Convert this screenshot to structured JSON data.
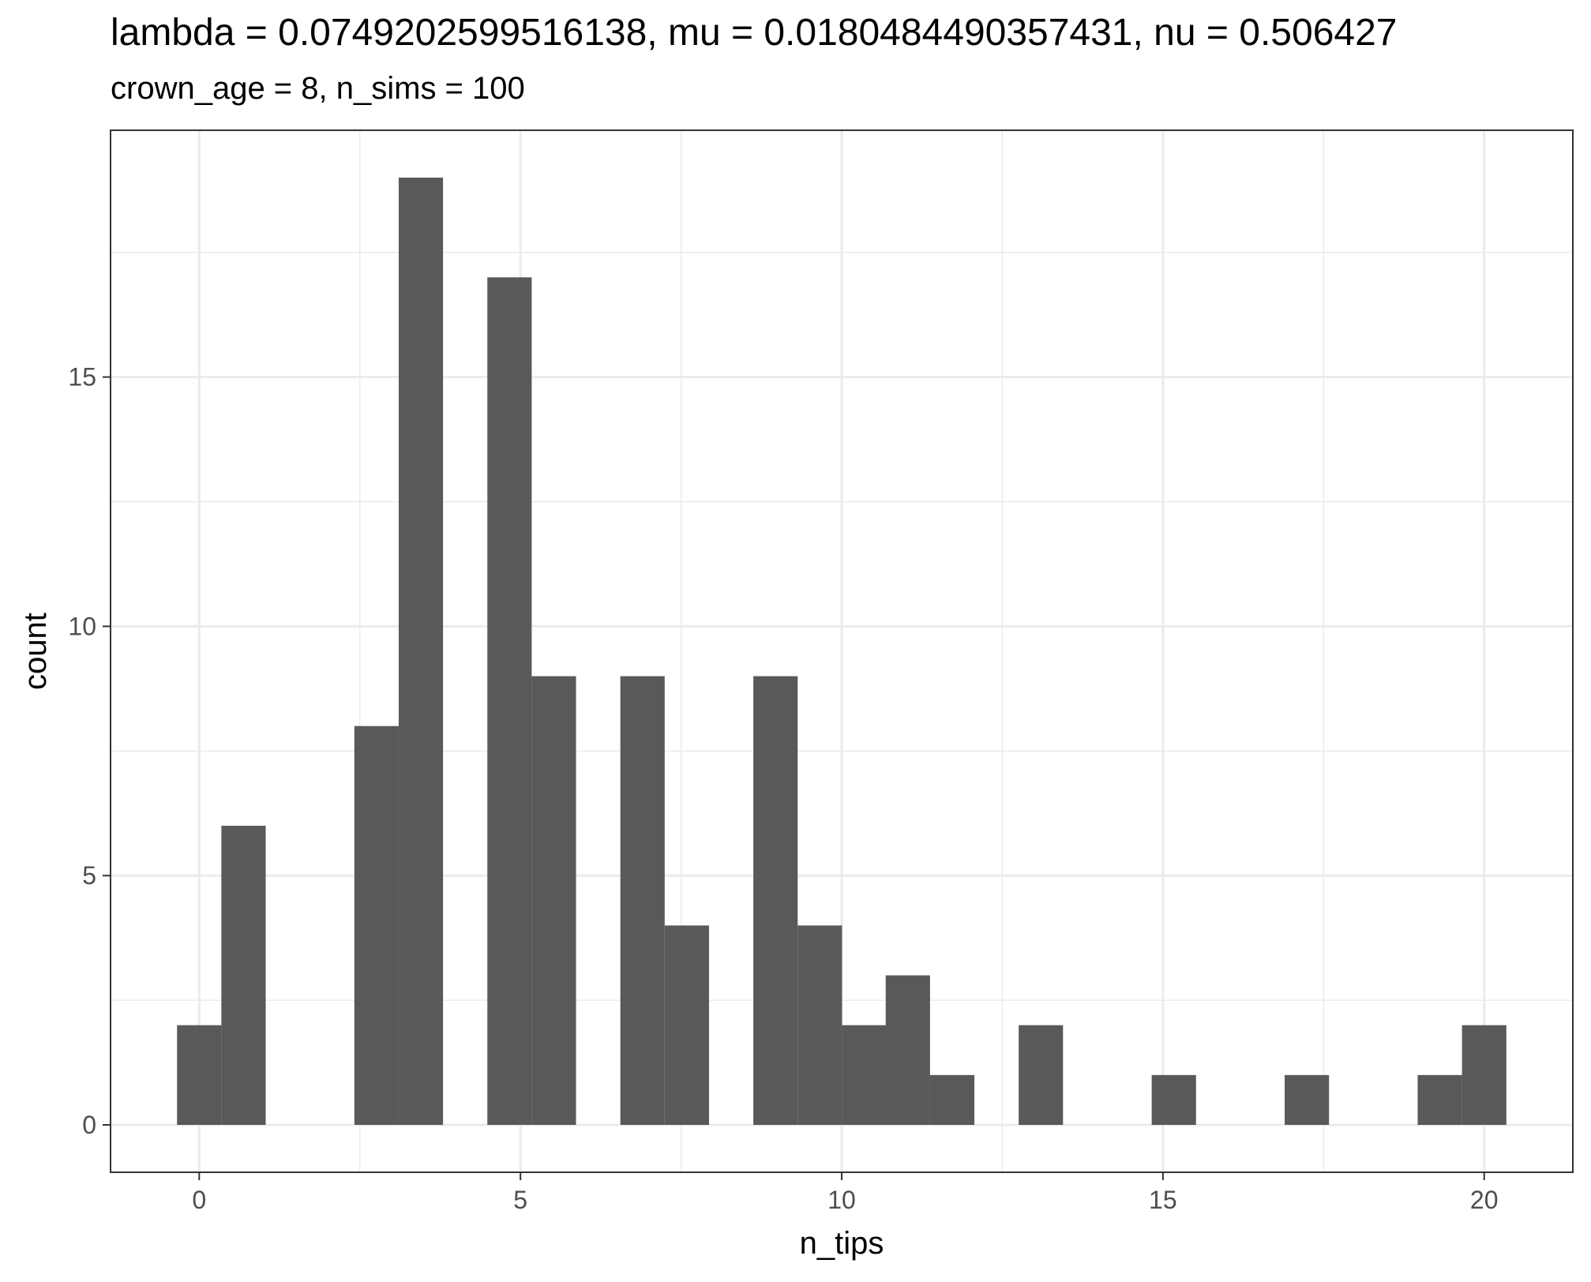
{
  "chart_data": {
    "type": "bar",
    "title": "lambda = 0.0749202599516138, mu = 0.0180484490357431, nu = 0.506427",
    "subtitle": "crown_age = 8, n_sims = 100",
    "xlabel": "n_tips",
    "ylabel": "count",
    "bin_width": 0.69,
    "bins": [
      {
        "x": 0.0,
        "count": 2
      },
      {
        "x": 0.69,
        "count": 6
      },
      {
        "x": 2.76,
        "count": 8
      },
      {
        "x": 3.45,
        "count": 19
      },
      {
        "x": 4.83,
        "count": 17
      },
      {
        "x": 5.52,
        "count": 9
      },
      {
        "x": 6.9,
        "count": 9
      },
      {
        "x": 7.59,
        "count": 4
      },
      {
        "x": 8.97,
        "count": 9
      },
      {
        "x": 9.66,
        "count": 4
      },
      {
        "x": 10.35,
        "count": 2
      },
      {
        "x": 11.03,
        "count": 3
      },
      {
        "x": 11.72,
        "count": 1
      },
      {
        "x": 13.1,
        "count": 2
      },
      {
        "x": 15.17,
        "count": 1
      },
      {
        "x": 17.24,
        "count": 1
      },
      {
        "x": 19.31,
        "count": 1
      },
      {
        "x": 20.0,
        "count": 2
      }
    ],
    "xlim": [
      -1.38,
      21.38
    ],
    "ylim": [
      -0.95,
      19.95
    ],
    "x_ticks": [
      0,
      5,
      10,
      15,
      20
    ],
    "y_ticks": [
      0,
      5,
      10,
      15
    ],
    "x_minor": [
      2.5,
      7.5,
      12.5,
      17.5
    ],
    "y_minor": [
      2.5,
      7.5,
      12.5,
      17.5
    ],
    "grid": true,
    "colors": {
      "bar": "#595959",
      "grid": "#ebebeb",
      "border": "#333333"
    }
  }
}
